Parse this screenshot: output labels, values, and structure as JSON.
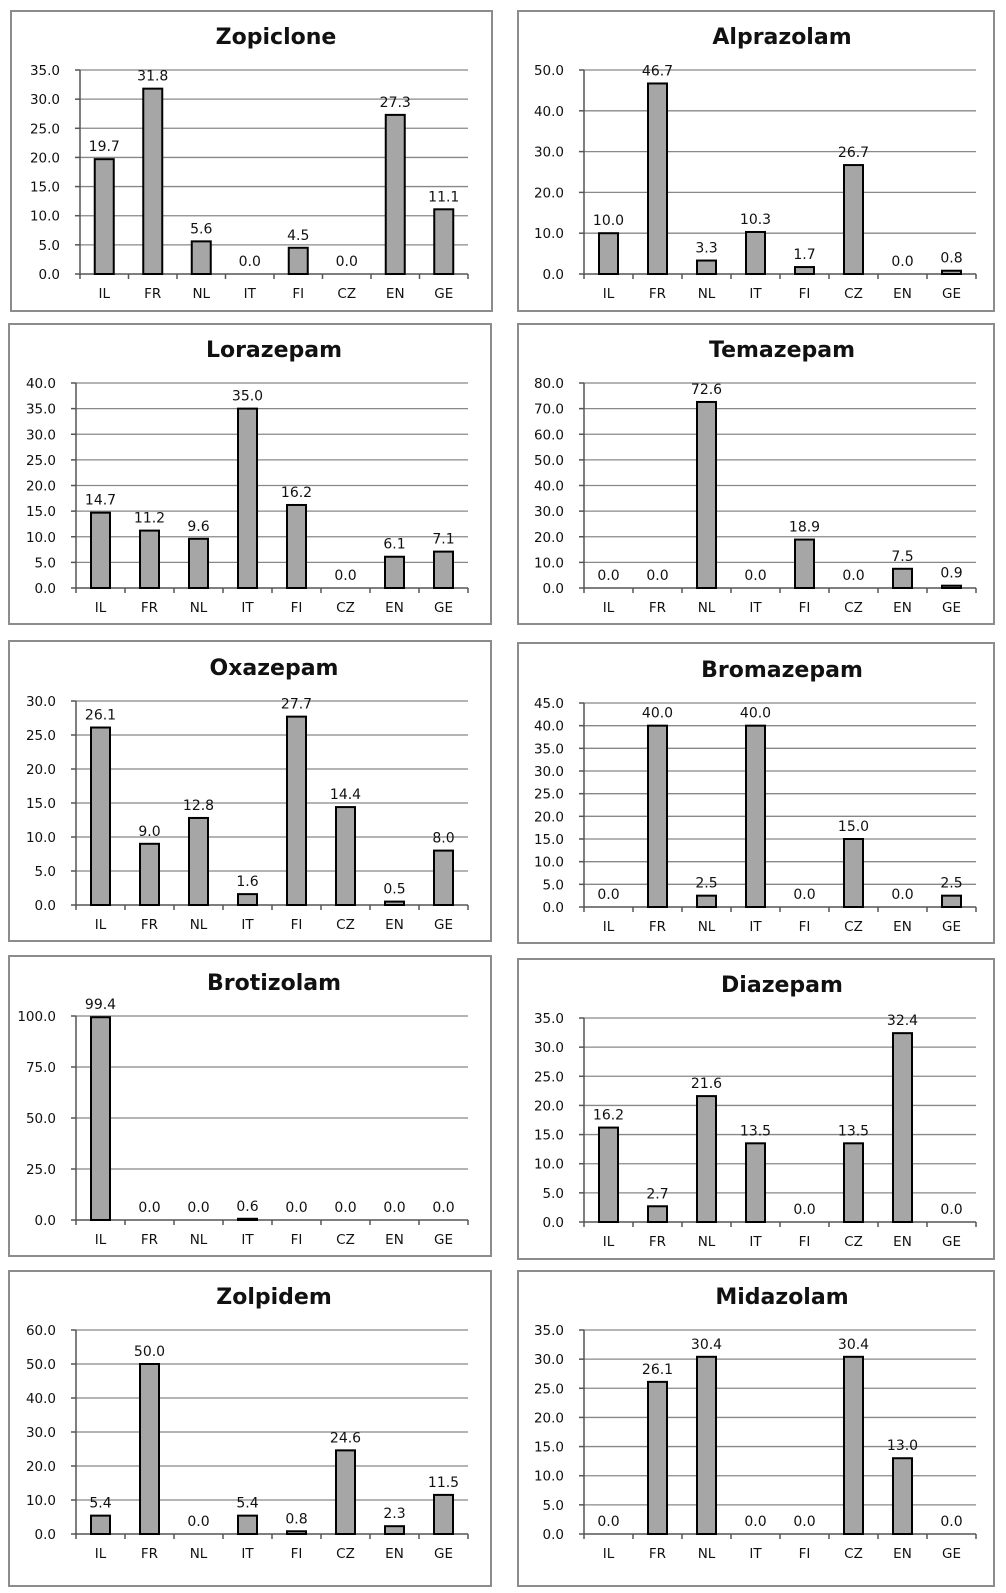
{
  "chart_data": [
    {
      "type": "bar",
      "title": "Zopiclone",
      "categories": [
        "IL",
        "FR",
        "NL",
        "IT",
        "FI",
        "CZ",
        "EN",
        "GE"
      ],
      "values": [
        19.7,
        31.8,
        5.6,
        0.0,
        4.5,
        0.0,
        27.3,
        11.1
      ],
      "value_labels": [
        "19.7",
        "31.8",
        "5.6",
        "0.0",
        "4.5",
        "0.0",
        "27.3",
        "11.1"
      ],
      "ylim": [
        0,
        35
      ],
      "yticks": [
        "0.0",
        "5.0",
        "10.0",
        "15.0",
        "20.0",
        "25.0",
        "30.0",
        "35.0"
      ],
      "grid": true,
      "bar_color": "#a6a6a6"
    },
    {
      "type": "bar",
      "title": "Alprazolam",
      "categories": [
        "IL",
        "FR",
        "NL",
        "IT",
        "FI",
        "CZ",
        "EN",
        "GE"
      ],
      "values": [
        10.0,
        46.7,
        3.3,
        10.3,
        1.7,
        26.7,
        0.0,
        0.8
      ],
      "value_labels": [
        "10.0",
        "46.7",
        "3.3",
        "10.3",
        "1.7",
        "26.7",
        "0.0",
        "0.8"
      ],
      "ylim": [
        0,
        50
      ],
      "yticks": [
        "0.0",
        "10.0",
        "20.0",
        "30.0",
        "40.0",
        "50.0"
      ],
      "grid": true,
      "bar_color": "#a6a6a6"
    },
    {
      "type": "bar",
      "title": "Lorazepam",
      "categories": [
        "IL",
        "FR",
        "NL",
        "IT",
        "FI",
        "CZ",
        "EN",
        "GE"
      ],
      "values": [
        14.7,
        11.2,
        9.6,
        35.0,
        16.2,
        0.0,
        6.1,
        7.1
      ],
      "value_labels": [
        "14.7",
        "11.2",
        "9.6",
        "35.0",
        "16.2",
        "0.0",
        "6.1",
        "7.1"
      ],
      "ylim": [
        0,
        40
      ],
      "yticks": [
        "0.0",
        "5.0",
        "10.0",
        "15.0",
        "20.0",
        "25.0",
        "30.0",
        "35.0",
        "40.0"
      ],
      "grid": true,
      "bar_color": "#a6a6a6"
    },
    {
      "type": "bar",
      "title": "Temazepam",
      "categories": [
        "IL",
        "FR",
        "NL",
        "IT",
        "FI",
        "CZ",
        "EN",
        "GE"
      ],
      "values": [
        0.0,
        0.0,
        72.6,
        0.0,
        18.9,
        0.0,
        7.5,
        0.9
      ],
      "value_labels": [
        "0.0",
        "0.0",
        "72.6",
        "0.0",
        "18.9",
        "0.0",
        "7.5",
        "0.9"
      ],
      "ylim": [
        0,
        80
      ],
      "yticks": [
        "0.0",
        "10.0",
        "20.0",
        "30.0",
        "40.0",
        "50.0",
        "60.0",
        "70.0",
        "80.0"
      ],
      "grid": true,
      "bar_color": "#a6a6a6"
    },
    {
      "type": "bar",
      "title": "Oxazepam",
      "categories": [
        "IL",
        "FR",
        "NL",
        "IT",
        "FI",
        "CZ",
        "EN",
        "GE"
      ],
      "values": [
        26.1,
        9.0,
        12.8,
        1.6,
        27.7,
        14.4,
        0.5,
        8.0
      ],
      "value_labels": [
        "26.1",
        "9.0",
        "12.8",
        "1.6",
        "27.7",
        "14.4",
        "0.5",
        "8.0"
      ],
      "ylim": [
        0,
        30
      ],
      "yticks": [
        "0.0",
        "5.0",
        "10.0",
        "15.0",
        "20.0",
        "25.0",
        "30.0"
      ],
      "grid": true,
      "bar_color": "#a6a6a6"
    },
    {
      "type": "bar",
      "title": "Bromazepam",
      "categories": [
        "IL",
        "FR",
        "NL",
        "IT",
        "FI",
        "CZ",
        "EN",
        "GE"
      ],
      "values": [
        0.0,
        40.0,
        2.5,
        40.0,
        0.0,
        15.0,
        0.0,
        2.5
      ],
      "value_labels": [
        "0.0",
        "40.0",
        "2.5",
        "40.0",
        "0.0",
        "15.0",
        "0.0",
        "2.5"
      ],
      "ylim": [
        0,
        45
      ],
      "yticks": [
        "0.0",
        "5.0",
        "10.0",
        "15.0",
        "20.0",
        "25.0",
        "30.0",
        "35.0",
        "40.0",
        "45.0"
      ],
      "grid": true,
      "bar_color": "#a6a6a6"
    },
    {
      "type": "bar",
      "title": "Brotizolam",
      "categories": [
        "IL",
        "FR",
        "NL",
        "IT",
        "FI",
        "CZ",
        "EN",
        "GE"
      ],
      "values": [
        99.4,
        0.0,
        0.0,
        0.6,
        0.0,
        0.0,
        0.0,
        0.0
      ],
      "value_labels": [
        "99.4",
        "0.0",
        "0.0",
        "0.6",
        "0.0",
        "0.0",
        "0.0",
        "0.0"
      ],
      "ylim": [
        0,
        100
      ],
      "yticks": [
        "0.0",
        "25.0",
        "50.0",
        "75.0",
        "100.0"
      ],
      "grid": true,
      "bar_color": "#a6a6a6"
    },
    {
      "type": "bar",
      "title": "Diazepam",
      "categories": [
        "IL",
        "FR",
        "NL",
        "IT",
        "FI",
        "CZ",
        "EN",
        "GE"
      ],
      "values": [
        16.2,
        2.7,
        21.6,
        13.5,
        0.0,
        13.5,
        32.4,
        0.0
      ],
      "value_labels": [
        "16.2",
        "2.7",
        "21.6",
        "13.5",
        "0.0",
        "13.5",
        "32.4",
        "0.0"
      ],
      "ylim": [
        0,
        35
      ],
      "yticks": [
        "0.0",
        "5.0",
        "10.0",
        "15.0",
        "20.0",
        "25.0",
        "30.0",
        "35.0"
      ],
      "grid": true,
      "bar_color": "#a6a6a6"
    },
    {
      "type": "bar",
      "title": "Zolpidem",
      "categories": [
        "IL",
        "FR",
        "NL",
        "IT",
        "FI",
        "CZ",
        "EN",
        "GE"
      ],
      "values": [
        5.4,
        50.0,
        0.0,
        5.4,
        0.8,
        24.6,
        2.3,
        11.5
      ],
      "value_labels": [
        "5.4",
        "50.0",
        "0.0",
        "5.4",
        "0.8",
        "24.6",
        "2.3",
        "11.5"
      ],
      "ylim": [
        0,
        60
      ],
      "yticks": [
        "0.0",
        "10.0",
        "20.0",
        "30.0",
        "40.0",
        "50.0",
        "60.0"
      ],
      "grid": true,
      "bar_color": "#a6a6a6"
    },
    {
      "type": "bar",
      "title": "Midazolam",
      "categories": [
        "IL",
        "FR",
        "NL",
        "IT",
        "FI",
        "CZ",
        "EN",
        "GE"
      ],
      "values": [
        0.0,
        26.1,
        30.4,
        0.0,
        0.0,
        30.4,
        13.0,
        0.0
      ],
      "value_labels": [
        "0.0",
        "26.1",
        "30.4",
        "0.0",
        "0.0",
        "30.4",
        "13.0",
        "0.0"
      ],
      "ylim": [
        0,
        35
      ],
      "yticks": [
        "0.0",
        "5.0",
        "10.0",
        "15.0",
        "20.0",
        "25.0",
        "30.0",
        "35.0"
      ],
      "grid": true,
      "bar_color": "#a6a6a6"
    }
  ]
}
